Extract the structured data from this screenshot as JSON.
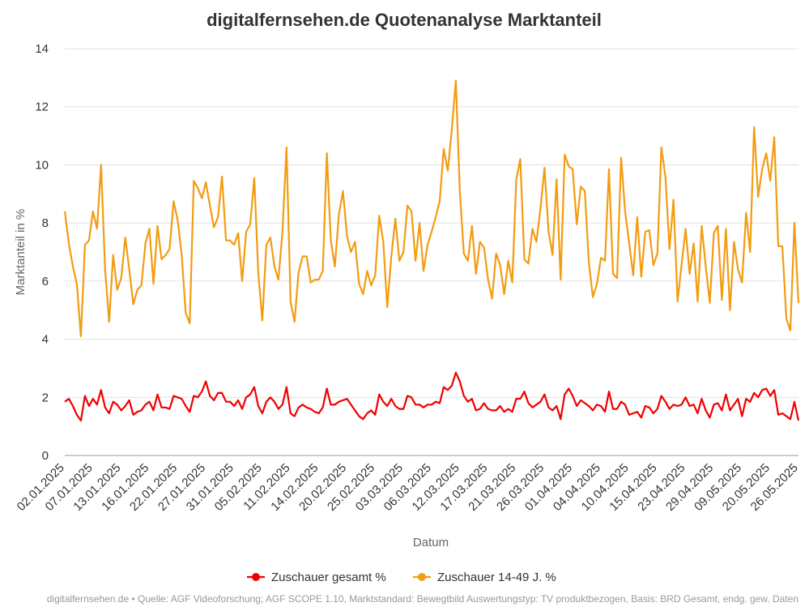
{
  "chart_data": {
    "type": "line",
    "title": "digitalfernsehen.de Quotenanalyse Marktanteil",
    "xlabel": "Datum",
    "ylabel": "Marktanteil in %",
    "ylim": [
      0,
      14
    ],
    "yticks": [
      "0",
      "2",
      "4",
      "6",
      "8",
      "10",
      "12",
      "14"
    ],
    "xtick_labels": [
      "02.01.2025",
      "07.01.2025",
      "13.01.2025",
      "16.01.2025",
      "22.01.2025",
      "27.01.2025",
      "31.01.2025",
      "05.02.2025",
      "11.02.2025",
      "14.02.2025",
      "20.02.2025",
      "25.02.2025",
      "03.03.2025",
      "06.03.2025",
      "12.03.2025",
      "17.03.2025",
      "21.03.2025",
      "26.03.2025",
      "01.04.2025",
      "04.04.2025",
      "10.04.2025",
      "15.04.2025",
      "23.04.2025",
      "29.04.2025",
      "09.05.2025",
      "20.05.2025",
      "26.05.2025"
    ],
    "grid": true,
    "legend": "bottom",
    "series": [
      {
        "name": "Zuschauer gesamt %",
        "color": "#ee0000",
        "values": [
          1.85,
          1.95,
          1.7,
          1.4,
          1.2,
          2.05,
          1.7,
          1.95,
          1.75,
          2.25,
          1.65,
          1.45,
          1.85,
          1.75,
          1.55,
          1.7,
          1.9,
          1.4,
          1.5,
          1.55,
          1.75,
          1.85,
          1.55,
          2.1,
          1.65,
          1.65,
          1.6,
          2.05,
          2.0,
          1.95,
          1.7,
          1.5,
          2.05,
          2.0,
          2.2,
          2.55,
          2.05,
          1.9,
          2.15,
          2.15,
          1.85,
          1.85,
          1.7,
          1.9,
          1.6,
          2.0,
          2.1,
          2.35,
          1.7,
          1.45,
          1.85,
          2.0,
          1.85,
          1.6,
          1.75,
          2.35,
          1.45,
          1.35,
          1.65,
          1.75,
          1.65,
          1.6,
          1.5,
          1.45,
          1.65,
          2.3,
          1.75,
          1.75,
          1.85,
          1.9,
          1.95,
          1.75,
          1.55,
          1.35,
          1.25,
          1.45,
          1.55,
          1.4,
          2.1,
          1.85,
          1.7,
          1.95,
          1.7,
          1.6,
          1.6,
          2.05,
          2.0,
          1.75,
          1.75,
          1.65,
          1.75,
          1.75,
          1.85,
          1.8,
          2.35,
          2.25,
          2.4,
          2.85,
          2.55,
          2.05,
          1.85,
          1.95,
          1.55,
          1.6,
          1.8,
          1.6,
          1.55,
          1.55,
          1.7,
          1.5,
          1.6,
          1.5,
          1.95,
          1.95,
          2.2,
          1.8,
          1.65,
          1.75,
          1.85,
          2.1,
          1.65,
          1.55,
          1.7,
          1.25,
          2.1,
          2.3,
          2.05,
          1.7,
          1.9,
          1.8,
          1.7,
          1.55,
          1.75,
          1.7,
          1.5,
          2.2,
          1.6,
          1.6,
          1.85,
          1.75,
          1.4,
          1.45,
          1.5,
          1.3,
          1.7,
          1.65,
          1.45,
          1.6,
          2.05,
          1.85,
          1.6,
          1.75,
          1.7,
          1.75,
          2.0,
          1.7,
          1.75,
          1.45,
          1.95,
          1.55,
          1.3,
          1.75,
          1.8,
          1.55,
          2.1,
          1.55,
          1.75,
          1.95,
          1.35,
          1.95,
          1.85,
          2.15,
          2.0,
          2.25,
          2.3,
          2.05,
          2.25,
          1.4,
          1.45,
          1.35,
          1.25,
          1.85,
          1.2
        ]
      },
      {
        "name": "Zuschauer 14-49 J. %",
        "color": "#f39c12",
        "values": [
          8.4,
          7.3,
          6.5,
          5.9,
          4.1,
          7.25,
          7.4,
          8.4,
          7.8,
          10.0,
          6.4,
          4.6,
          6.9,
          5.7,
          6.1,
          7.5,
          6.4,
          5.2,
          5.7,
          5.85,
          7.3,
          7.8,
          5.9,
          7.9,
          6.75,
          6.9,
          7.1,
          8.75,
          8.1,
          6.9,
          4.9,
          4.55,
          9.45,
          9.2,
          8.85,
          9.4,
          8.6,
          7.85,
          8.2,
          9.6,
          7.4,
          7.4,
          7.25,
          7.65,
          6.0,
          7.7,
          7.95,
          9.55,
          6.3,
          4.65,
          7.25,
          7.5,
          6.5,
          6.05,
          7.7,
          10.6,
          5.3,
          4.6,
          6.3,
          6.85,
          6.85,
          5.95,
          6.05,
          6.05,
          6.35,
          10.4,
          7.4,
          6.5,
          8.3,
          9.1,
          7.55,
          7.0,
          7.35,
          5.9,
          5.55,
          6.35,
          5.85,
          6.2,
          8.25,
          7.35,
          5.1,
          6.85,
          8.15,
          6.7,
          7.0,
          8.6,
          8.4,
          6.7,
          8.0,
          6.35,
          7.25,
          7.7,
          8.2,
          8.75,
          10.55,
          9.8,
          11.2,
          12.9,
          9.1,
          6.95,
          6.7,
          7.9,
          6.25,
          7.35,
          7.15,
          6.05,
          5.4,
          6.95,
          6.55,
          5.55,
          6.7,
          5.95,
          9.5,
          10.2,
          6.75,
          6.6,
          7.8,
          7.35,
          8.5,
          9.9,
          7.7,
          6.9,
          9.5,
          6.05,
          10.35,
          9.95,
          9.85,
          7.95,
          9.25,
          9.1,
          6.65,
          5.45,
          5.9,
          6.8,
          6.7,
          9.85,
          6.25,
          6.1,
          10.25,
          8.4,
          7.3,
          6.2,
          8.2,
          6.15,
          7.7,
          7.75,
          6.55,
          6.95,
          10.6,
          9.6,
          7.1,
          8.8,
          5.3,
          6.55,
          7.8,
          6.25,
          7.3,
          5.3,
          7.9,
          6.5,
          5.25,
          7.65,
          7.9,
          5.35,
          7.8,
          5.0,
          7.35,
          6.4,
          5.95,
          8.35,
          7.0,
          11.3,
          8.9,
          9.85,
          10.4,
          9.45,
          10.95,
          7.2,
          7.2,
          4.7,
          4.3,
          8.0,
          5.25
        ]
      }
    ]
  },
  "source_text": "digitalfernsehen.de • Quelle: AGF Videoforschung; AGF SCOPE 1.10, Marktstandard: Bewegtbild Auswertungstyp: TV produktbezogen, Basis: BRD Gesamt, endg. gew. Daten"
}
